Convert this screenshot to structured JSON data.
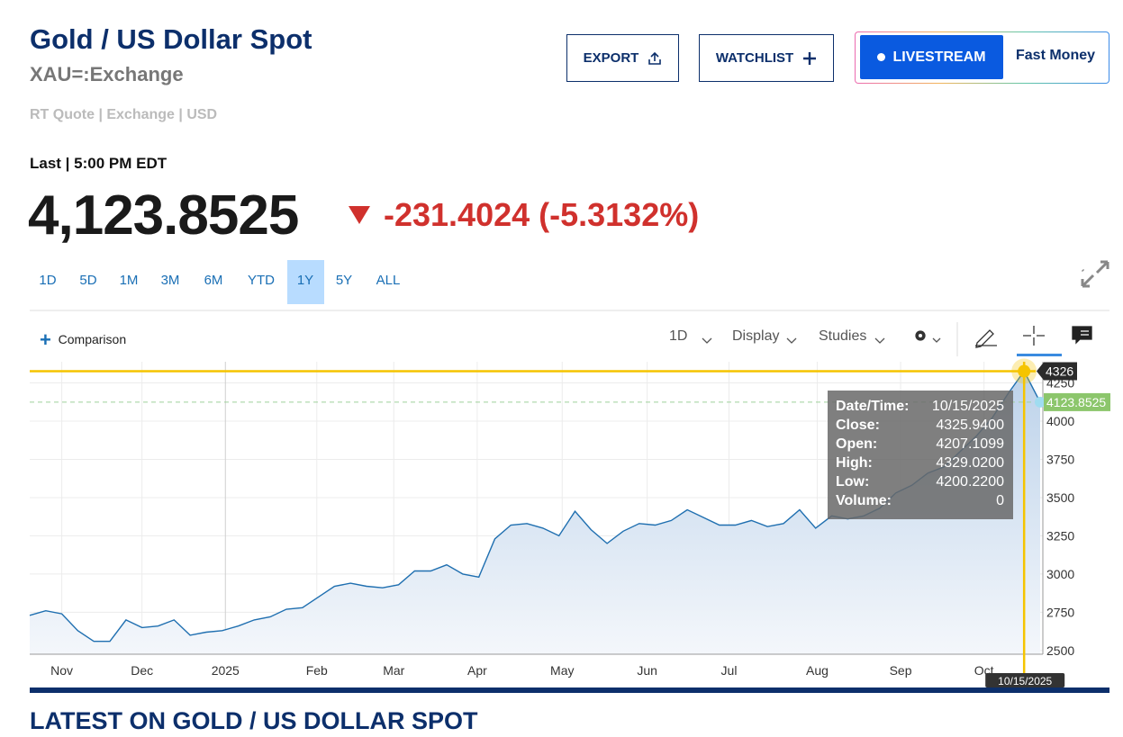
{
  "header": {
    "title": "Gold / US Dollar Spot",
    "symbol": "XAU=:Exchange",
    "meta": "RT Quote | Exchange | USD",
    "buttons": {
      "export": "EXPORT",
      "watchlist": "WATCHLIST",
      "livestream": "LIVESTREAM",
      "show": "Fast Money"
    }
  },
  "quote": {
    "last_label": "Last | 5:00 PM EDT",
    "price": "4,123.8525",
    "change": "-231.4024 (-5.3132%)"
  },
  "ranges": [
    "1D",
    "5D",
    "1M",
    "3M",
    "6M",
    "YTD",
    "1Y",
    "5Y",
    "ALL"
  ],
  "toolbar": {
    "comparison": "Comparison",
    "interval": "1D",
    "display": "Display",
    "studies": "Studies"
  },
  "chart_data": {
    "type": "area",
    "series": [
      {
        "name": "XAU",
        "color": "#1f6fb0",
        "values": [
          2730,
          2760,
          2740,
          2630,
          2560,
          2560,
          2700,
          2650,
          2660,
          2700,
          2600,
          2620,
          2630,
          2660,
          2700,
          2720,
          2770,
          2780,
          2850,
          2920,
          2940,
          2920,
          2910,
          2930,
          3020,
          3020,
          3060,
          3000,
          2980,
          3230,
          3320,
          3330,
          3300,
          3250,
          3410,
          3290,
          3200,
          3280,
          3330,
          3320,
          3350,
          3420,
          3370,
          3320,
          3320,
          3350,
          3310,
          3330,
          3420,
          3300,
          3380,
          3360,
          3380,
          3430,
          3530,
          3580,
          3660,
          3700,
          3800,
          3900,
          4020,
          4180,
          4326,
          4123.8525
        ]
      }
    ],
    "xlim": [
      0,
      63
    ],
    "xticks": [
      {
        "value": 2.0,
        "label": "Nov"
      },
      {
        "value": 7.0,
        "label": "Dec"
      },
      {
        "value": 12.2,
        "label": "2025"
      },
      {
        "value": 17.9,
        "label": "Feb"
      },
      {
        "value": 22.7,
        "label": "Mar"
      },
      {
        "value": 27.9,
        "label": "Apr"
      },
      {
        "value": 33.2,
        "label": "May"
      },
      {
        "value": 38.5,
        "label": "Jun"
      },
      {
        "value": 43.6,
        "label": "Jul"
      },
      {
        "value": 49.1,
        "label": "Aug"
      },
      {
        "value": 54.3,
        "label": "Sep"
      },
      {
        "value": 59.5,
        "label": "Oct"
      }
    ],
    "ylim": [
      2476,
      4388
    ],
    "yticks": [
      2500,
      2750,
      3000,
      3250,
      3500,
      3750,
      4000,
      4250
    ],
    "grid": true,
    "last_value": 4123.8525,
    "crosshair": {
      "value": 4326,
      "index": 62,
      "date": "10/15/2025"
    },
    "tooltip": [
      [
        "Date/Time:",
        "10/15/2025"
      ],
      [
        "Close:",
        "4325.9400"
      ],
      [
        "Open:",
        "4207.1099"
      ],
      [
        "High:",
        "4329.0200"
      ],
      [
        "Low:",
        "4200.2200"
      ],
      [
        "Volume:",
        "0"
      ]
    ]
  },
  "section_title": "LATEST ON GOLD / US DOLLAR SPOT"
}
